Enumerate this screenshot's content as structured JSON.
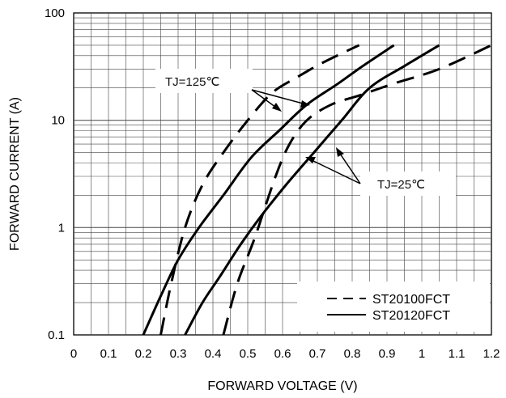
{
  "chart_data": {
    "type": "line",
    "xlabel": "FORWARD VOLTAGE (V)",
    "ylabel": "FORWARD CURRENT (A)",
    "xlim": [
      0,
      1.2
    ],
    "ylim": [
      0.1,
      100
    ],
    "y_scale": "log",
    "grid": true,
    "x_ticks": [
      "0",
      "0.1",
      "0.2",
      "0.3",
      "0.4",
      "0.5",
      "0.6",
      "0.7",
      "0.8",
      "0.9",
      "1",
      "1.1",
      "1.2"
    ],
    "y_ticks": [
      "0.1",
      "1",
      "10",
      "100"
    ],
    "legend_position": "bottom-right",
    "legend": [
      {
        "label": "ST20100FCT",
        "style": "dashed"
      },
      {
        "label": "ST20120FCT",
        "style": "solid"
      }
    ],
    "annotations": [
      "TJ=125℃",
      "TJ=25℃"
    ],
    "series": [
      {
        "legend": "ST20100FCT",
        "condition": "TJ=125℃",
        "style": "dashed",
        "x": [
          0.25,
          0.28,
          0.32,
          0.37,
          0.43,
          0.5,
          0.57,
          0.64,
          0.72,
          0.82
        ],
        "y": [
          0.1,
          0.3,
          1,
          2.5,
          5,
          10,
          18,
          25,
          35,
          50
        ]
      },
      {
        "legend": "ST20120FCT",
        "condition": "TJ=125℃",
        "style": "solid",
        "x": [
          0.2,
          0.25,
          0.3,
          0.36,
          0.43,
          0.51,
          0.59,
          0.67,
          0.76,
          0.83,
          0.92
        ],
        "y": [
          0.1,
          0.23,
          0.5,
          1,
          2,
          4.5,
          8,
          14,
          22,
          32,
          50
        ]
      },
      {
        "legend": "ST20100FCT",
        "condition": "TJ=25℃",
        "style": "dashed",
        "x": [
          0.43,
          0.47,
          0.52,
          0.58,
          0.62,
          0.67,
          0.74,
          0.82,
          0.92,
          1.05,
          1.2
        ],
        "y": [
          0.1,
          0.3,
          0.8,
          3,
          6,
          10,
          14,
          17,
          22,
          30,
          50
        ]
      },
      {
        "legend": "ST20120FCT",
        "condition": "TJ=25℃",
        "style": "solid",
        "x": [
          0.32,
          0.37,
          0.42,
          0.48,
          0.54,
          0.61,
          0.69,
          0.77,
          0.85,
          0.95,
          1.05
        ],
        "y": [
          0.1,
          0.2,
          0.35,
          0.7,
          1.3,
          2.5,
          5,
          10,
          20,
          32,
          50
        ]
      }
    ]
  }
}
